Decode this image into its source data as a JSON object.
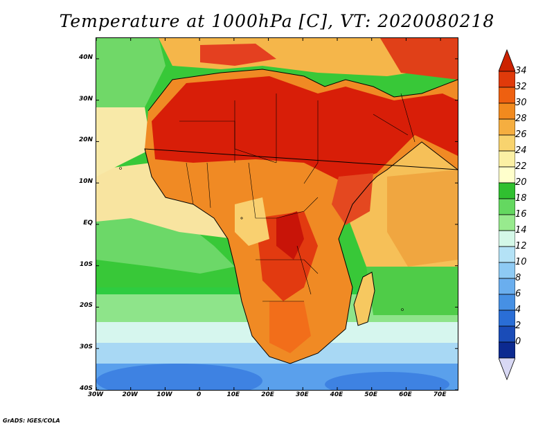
{
  "title": "Temperature at 1000hPa [C], VT: 2020080218",
  "credit": "GrADS: IGES/COLA",
  "map": {
    "lon_range": [
      -30,
      75
    ],
    "lat_range": [
      -40,
      45
    ],
    "lat_ticks": [
      {
        "value": 40,
        "label": "40N"
      },
      {
        "value": 30,
        "label": "30N"
      },
      {
        "value": 20,
        "label": "20N"
      },
      {
        "value": 10,
        "label": "10N"
      },
      {
        "value": 0,
        "label": "EQ"
      },
      {
        "value": -10,
        "label": "10S"
      },
      {
        "value": -20,
        "label": "20S"
      },
      {
        "value": -30,
        "label": "30S"
      },
      {
        "value": -40,
        "label": "40S"
      }
    ],
    "lon_ticks": [
      {
        "value": -30,
        "label": "30W"
      },
      {
        "value": -20,
        "label": "20W"
      },
      {
        "value": -10,
        "label": "10W"
      },
      {
        "value": 0,
        "label": "0"
      },
      {
        "value": 10,
        "label": "10E"
      },
      {
        "value": 20,
        "label": "20E"
      },
      {
        "value": 30,
        "label": "30E"
      },
      {
        "value": 40,
        "label": "40E"
      },
      {
        "value": 50,
        "label": "50E"
      },
      {
        "value": 60,
        "label": "60E"
      },
      {
        "value": 70,
        "label": "70E"
      }
    ]
  },
  "colorbar": {
    "labels": [
      "34",
      "32",
      "30",
      "28",
      "26",
      "24",
      "22",
      "20",
      "18",
      "16",
      "14",
      "12",
      "10",
      "8",
      "6",
      "4",
      "2",
      "0"
    ],
    "colors": [
      "#cc2200",
      "#e03a0a",
      "#ee6010",
      "#f28a1e",
      "#f5ae40",
      "#f8d36e",
      "#fbf0a4",
      "#ffffcc",
      "#30c030",
      "#64d860",
      "#98ea8e",
      "#d4f8e8",
      "#b4e2f6",
      "#8ecaf4",
      "#6aaeee",
      "#4690e4",
      "#2a6ed6",
      "#1a4cb8",
      "#0c2a90",
      "#d8d8f4"
    ]
  }
}
